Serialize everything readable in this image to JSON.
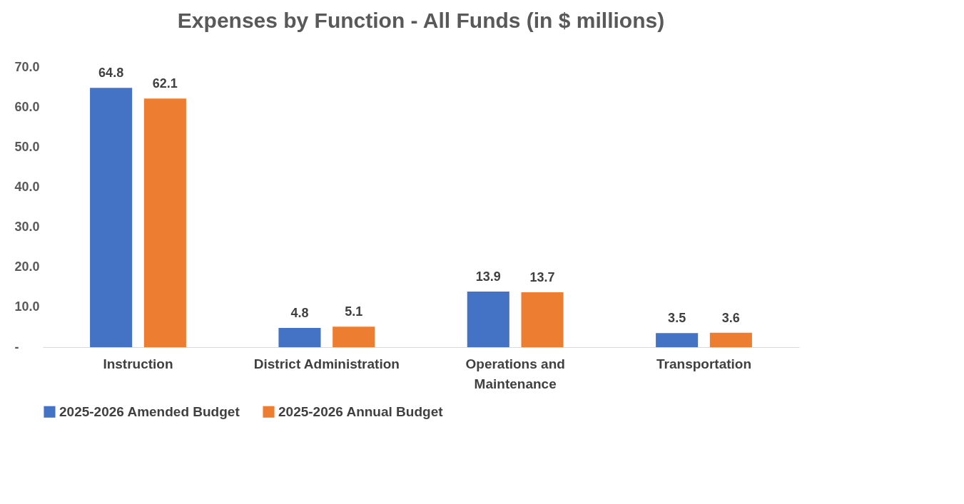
{
  "chart_data": {
    "type": "bar",
    "title": "Expenses by Function - All Funds (in $ millions)",
    "categories": [
      "Instruction",
      "District Administration",
      "Operations and Maintenance",
      "Transportation"
    ],
    "series": [
      {
        "name": "2025-2026 Amended Budget",
        "color": "#4472c4",
        "values": [
          64.8,
          4.8,
          13.9,
          3.5
        ]
      },
      {
        "name": "2025-2026 Annual Budget",
        "color": "#ed7d31",
        "values": [
          62.1,
          5.1,
          13.7,
          3.6
        ]
      }
    ],
    "ylim": [
      0,
      70
    ],
    "yticks": [
      {
        "value": 0,
        "label": "-"
      },
      {
        "value": 10,
        "label": "10.0"
      },
      {
        "value": 20,
        "label": "20.0"
      },
      {
        "value": 30,
        "label": "30.0"
      },
      {
        "value": 40,
        "label": "40.0"
      },
      {
        "value": 50,
        "label": "50.0"
      },
      {
        "value": 60,
        "label": "60.0"
      },
      {
        "value": 70,
        "label": "70.0"
      }
    ],
    "data_labels": true,
    "grid": false,
    "legend": "bottom"
  }
}
